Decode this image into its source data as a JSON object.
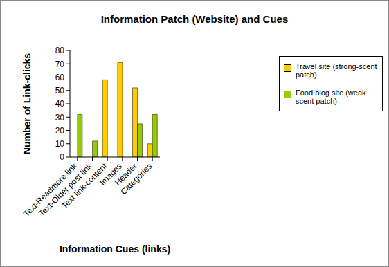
{
  "chart_data": {
    "type": "bar",
    "title": "Information Patch (Website) and Cues",
    "x_label": "Information Cues (links)",
    "y_label": "Number of Link-clicks",
    "categories": [
      "Text-Readmore link",
      "Text-Older post link",
      "Text link-content",
      "Images",
      "Header",
      "Categories"
    ],
    "series": [
      {
        "name": "Travel site (strong-scent patch)",
        "color": "#ffcc00",
        "values": [
          null,
          null,
          58,
          71,
          52,
          10
        ]
      },
      {
        "name": "Food blog site (weak scent patch)",
        "color": "#99cc00",
        "values": [
          32,
          12,
          null,
          null,
          25,
          32
        ]
      }
    ],
    "ylim": [
      0,
      80
    ],
    "yticks": [
      0,
      10,
      20,
      30,
      40,
      50,
      60,
      70,
      80
    ],
    "grid": false,
    "legend": "right"
  }
}
